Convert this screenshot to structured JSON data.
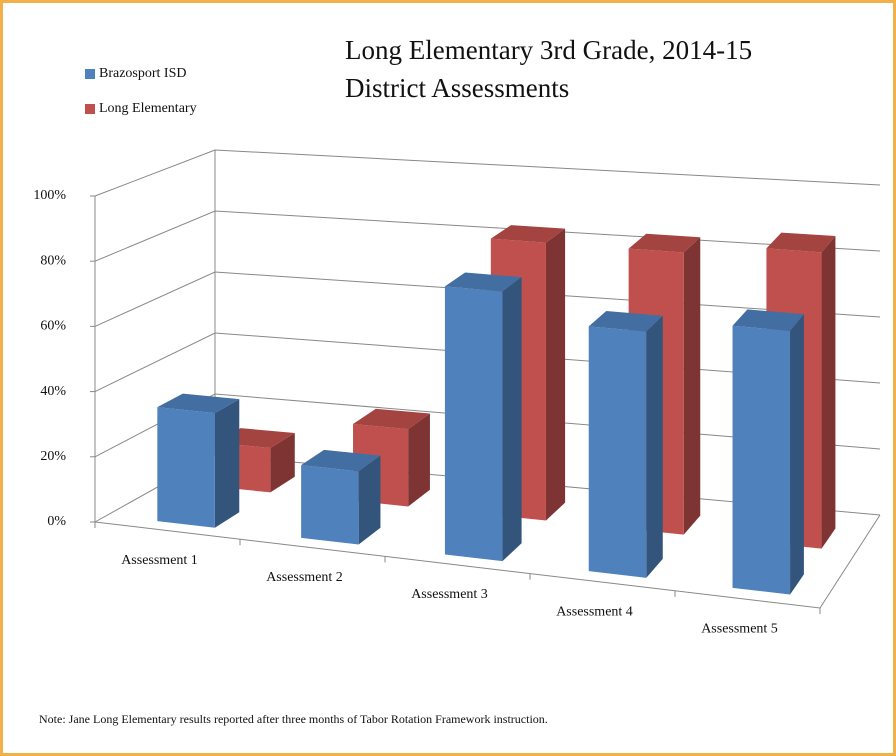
{
  "chart_data": {
    "type": "bar3d",
    "title": "Long Elementary 3rd Grade, 2014-15 District Assessments",
    "categories": [
      "Assessment 1",
      "Assessment 2",
      "Assessment 3",
      "Assessment 4",
      "Assessment 5"
    ],
    "series": [
      {
        "name": "Brazosport ISD",
        "color": "#4f81bd",
        "values": [
          35,
          22,
          80,
          72,
          76
        ]
      },
      {
        "name": "Long Elementary",
        "color": "#c0504d",
        "values": [
          14,
          24,
          85,
          85,
          88
        ]
      }
    ],
    "ylim": [
      0,
      100
    ],
    "yticks": [
      {
        "value": 0,
        "label": "0%"
      },
      {
        "value": 20,
        "label": "20%"
      },
      {
        "value": 40,
        "label": "40%"
      },
      {
        "value": 60,
        "label": "60%"
      },
      {
        "value": 80,
        "label": "80%"
      },
      {
        "value": 100,
        "label": "100%"
      }
    ],
    "grid": true,
    "legend": "top-left",
    "note": "Note: Jane Long Elementary results reported after three months of Tabor Rotation Framework instruction."
  }
}
